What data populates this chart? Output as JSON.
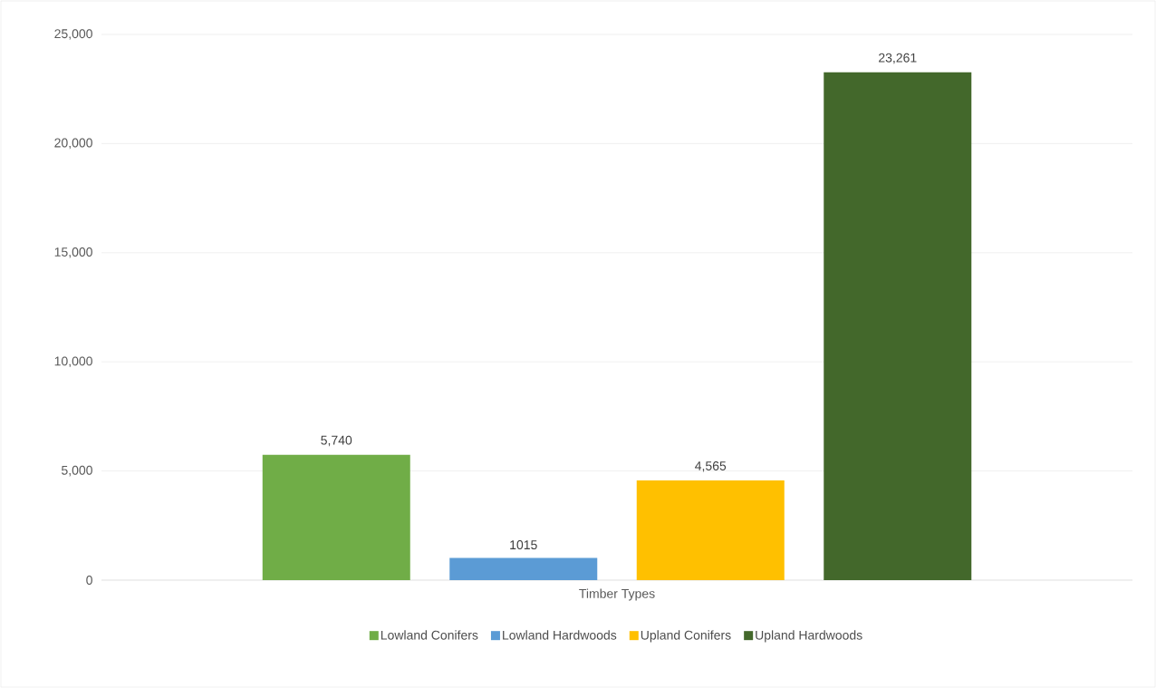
{
  "chart_data": {
    "type": "bar",
    "categories": [
      "Timber Types"
    ],
    "series": [
      {
        "name": "Lowland Conifers",
        "color": "#70ad47",
        "values": [
          5740
        ],
        "value_labels": [
          "5,740"
        ]
      },
      {
        "name": "Lowland Hardwoods",
        "color": "#5b9bd5",
        "values": [
          1015
        ],
        "value_labels": [
          "1015"
        ]
      },
      {
        "name": "Upland Conifers",
        "color": "#ffc000",
        "values": [
          4565
        ],
        "value_labels": [
          "4,565"
        ]
      },
      {
        "name": "Upland Hardwoods",
        "color": "#43682b",
        "values": [
          23261
        ],
        "value_labels": [
          "23,261"
        ]
      }
    ],
    "ylim": [
      0,
      25000
    ],
    "yticks": [
      {
        "value": 0,
        "label": "0"
      },
      {
        "value": 5000,
        "label": "5,000"
      },
      {
        "value": 10000,
        "label": "10,000"
      },
      {
        "value": 15000,
        "label": "15,000"
      },
      {
        "value": 20000,
        "label": "20,000"
      },
      {
        "value": 25000,
        "label": "25,000"
      }
    ],
    "grid": "y",
    "legend": "bottom"
  }
}
